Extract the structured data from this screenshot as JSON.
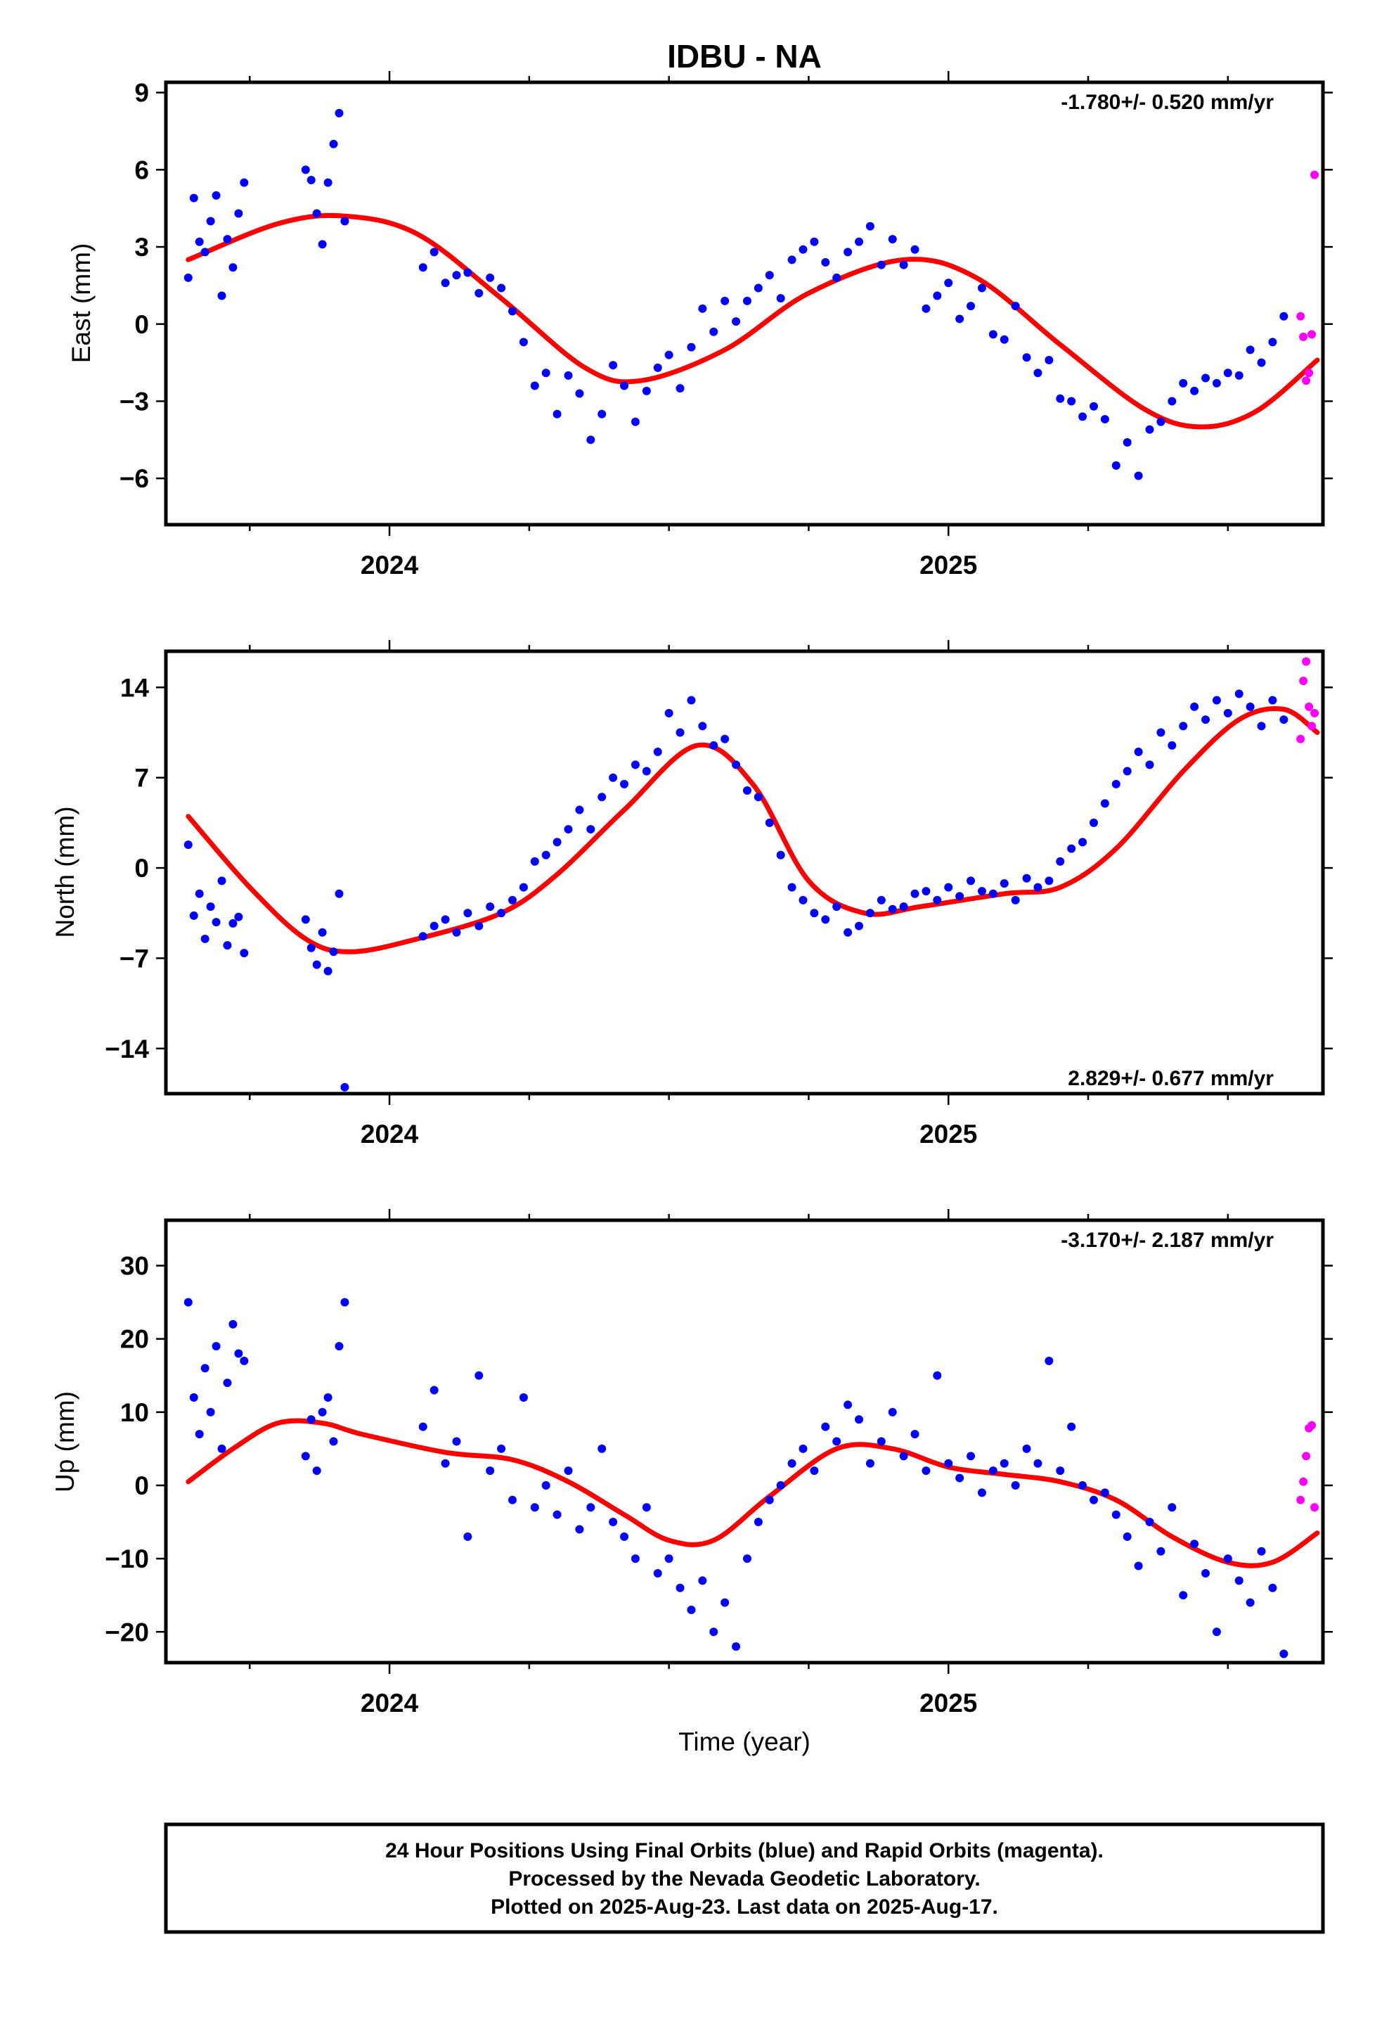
{
  "title": "IDBU - NA",
  "x_axis_title": "Time (year)",
  "footer": {
    "line1": "24 Hour Positions Using Final Orbits (blue) and Rapid Orbits (magenta).",
    "line2": "Processed by the Nevada Geodetic Laboratory.",
    "line3": "Plotted on 2025-Aug-23. Last data on 2025-Aug-17."
  },
  "colors": {
    "final_orbits": "#0000ff",
    "rapid_orbits": "#ff00ff",
    "model_fit": "#ff0000",
    "frame": "#000000"
  },
  "chart_data": [
    {
      "type": "scatter",
      "component": "east",
      "ylabel": "East (mm)",
      "rate_text": "-1.780+/- 0.520 mm/yr",
      "xlim": [
        2023.6,
        2025.67
      ],
      "ylim": [
        -7.8,
        9.4
      ],
      "yticks": [
        -6,
        -3,
        0,
        3,
        6,
        9
      ],
      "ytick_labels": [
        "−6",
        "−3",
        "0",
        "3",
        "6",
        "9"
      ],
      "xticks": [
        2024,
        2025
      ],
      "xtick_labels": [
        "2024",
        "2025"
      ],
      "x_minor_ticks": [
        2023.75,
        2024.25,
        2024.5,
        2024.75,
        2025.25,
        2025.5
      ],
      "fit": {
        "x": [
          2023.64,
          2023.8,
          2023.92,
          2024.05,
          2024.2,
          2024.35,
          2024.45,
          2024.6,
          2024.75,
          2024.92,
          2025.05,
          2025.2,
          2025.35,
          2025.45,
          2025.55,
          2025.66
        ],
        "y": [
          2.5,
          3.9,
          4.2,
          3.5,
          1.0,
          -1.7,
          -2.2,
          -1.0,
          1.2,
          2.5,
          1.8,
          -0.8,
          -3.3,
          -4.0,
          -3.4,
          -1.4
        ]
      },
      "series": [
        {
          "name": "Final Orbits",
          "color": "#0000ff",
          "x": [
            2023.64,
            2023.65,
            2023.66,
            2023.67,
            2023.68,
            2023.69,
            2023.7,
            2023.71,
            2023.72,
            2023.73,
            2023.74,
            2023.85,
            2023.86,
            2023.87,
            2023.88,
            2023.89,
            2023.9,
            2023.91,
            2023.92,
            2024.06,
            2024.08,
            2024.1,
            2024.12,
            2024.14,
            2024.16,
            2024.18,
            2024.2,
            2024.22,
            2024.24,
            2024.26,
            2024.28,
            2024.3,
            2024.32,
            2024.34,
            2024.36,
            2024.38,
            2024.4,
            2024.42,
            2024.44,
            2024.46,
            2024.48,
            2024.5,
            2024.52,
            2024.54,
            2024.56,
            2024.58,
            2024.6,
            2024.62,
            2024.64,
            2024.66,
            2024.68,
            2024.7,
            2024.72,
            2024.74,
            2024.76,
            2024.78,
            2024.8,
            2024.82,
            2024.84,
            2024.86,
            2024.88,
            2024.9,
            2024.92,
            2024.94,
            2024.96,
            2024.98,
            2025.0,
            2025.02,
            2025.04,
            2025.06,
            2025.08,
            2025.1,
            2025.12,
            2025.14,
            2025.16,
            2025.18,
            2025.2,
            2025.22,
            2025.24,
            2025.26,
            2025.28,
            2025.3,
            2025.32,
            2025.34,
            2025.36,
            2025.38,
            2025.4,
            2025.42,
            2025.44,
            2025.46,
            2025.48,
            2025.5,
            2025.52,
            2025.54,
            2025.56,
            2025.58,
            2025.6
          ],
          "y": [
            1.8,
            4.9,
            3.2,
            2.8,
            4.0,
            5.0,
            1.1,
            3.3,
            2.2,
            4.3,
            5.5,
            6.0,
            5.6,
            4.3,
            3.1,
            5.5,
            7.0,
            8.2,
            4.0,
            2.2,
            2.8,
            1.6,
            1.9,
            2.0,
            1.2,
            1.8,
            1.4,
            0.5,
            -0.7,
            -2.4,
            -1.9,
            -3.5,
            -2.0,
            -2.7,
            -4.5,
            -3.5,
            -1.6,
            -2.4,
            -3.8,
            -2.6,
            -1.7,
            -1.2,
            -2.5,
            -0.9,
            0.6,
            -0.3,
            0.9,
            0.1,
            0.9,
            1.4,
            1.9,
            1.0,
            2.5,
            2.9,
            3.2,
            2.4,
            1.8,
            2.8,
            3.2,
            3.8,
            2.3,
            3.3,
            2.3,
            2.9,
            0.6,
            1.1,
            1.6,
            0.2,
            0.7,
            1.4,
            -0.4,
            -0.6,
            0.7,
            -1.3,
            -1.9,
            -1.4,
            -2.9,
            -3.0,
            -3.6,
            -3.2,
            -3.7,
            -5.5,
            -4.6,
            -5.9,
            -4.1,
            -3.8,
            -3.0,
            -2.3,
            -2.6,
            -2.1,
            -2.3,
            -1.9,
            -2.0,
            -1.0,
            -1.5,
            -0.7,
            0.3
          ]
        },
        {
          "name": "Rapid Orbits",
          "color": "#ff00ff",
          "x": [
            2025.63,
            2025.635,
            2025.64,
            2025.645,
            2025.65,
            2025.655
          ],
          "y": [
            0.3,
            -0.5,
            -2.2,
            -1.9,
            -0.4,
            5.8
          ]
        }
      ]
    },
    {
      "type": "scatter",
      "component": "north",
      "ylabel": "North (mm)",
      "rate_text": "2.829+/- 0.677 mm/yr",
      "xlim": [
        2023.6,
        2025.67
      ],
      "ylim": [
        -17.5,
        16.8
      ],
      "yticks": [
        -14,
        -7,
        0,
        7,
        14
      ],
      "ytick_labels": [
        "−14",
        "−7",
        "0",
        "7",
        "14"
      ],
      "xticks": [
        2024,
        2025
      ],
      "xtick_labels": [
        "2024",
        "2025"
      ],
      "x_minor_ticks": [
        2023.75,
        2024.25,
        2024.5,
        2024.75,
        2025.25,
        2025.5
      ],
      "fit": {
        "x": [
          2023.64,
          2023.75,
          2023.85,
          2023.93,
          2024.05,
          2024.2,
          2024.3,
          2024.42,
          2024.55,
          2024.65,
          2024.75,
          2024.85,
          2024.95,
          2025.1,
          2025.2,
          2025.3,
          2025.42,
          2025.52,
          2025.6,
          2025.66
        ],
        "y": [
          4.0,
          -1.5,
          -5.5,
          -6.5,
          -5.5,
          -3.5,
          -0.5,
          4.5,
          9.5,
          6.5,
          -1.0,
          -3.5,
          -3.0,
          -2.0,
          -1.5,
          1.5,
          7.5,
          11.5,
          12.3,
          10.5
        ]
      },
      "series": [
        {
          "name": "Final Orbits",
          "color": "#0000ff",
          "x": [
            2023.64,
            2023.65,
            2023.66,
            2023.67,
            2023.68,
            2023.69,
            2023.7,
            2023.71,
            2023.72,
            2023.73,
            2023.74,
            2023.85,
            2023.86,
            2023.87,
            2023.88,
            2023.89,
            2023.9,
            2023.91,
            2023.92,
            2024.06,
            2024.08,
            2024.1,
            2024.12,
            2024.14,
            2024.16,
            2024.18,
            2024.2,
            2024.22,
            2024.24,
            2024.26,
            2024.28,
            2024.3,
            2024.32,
            2024.34,
            2024.36,
            2024.38,
            2024.4,
            2024.42,
            2024.44,
            2024.46,
            2024.48,
            2024.5,
            2024.52,
            2024.54,
            2024.56,
            2024.58,
            2024.6,
            2024.62,
            2024.64,
            2024.66,
            2024.68,
            2024.7,
            2024.72,
            2024.74,
            2024.76,
            2024.78,
            2024.8,
            2024.82,
            2024.84,
            2024.86,
            2024.88,
            2024.9,
            2024.92,
            2024.94,
            2024.96,
            2024.98,
            2025.0,
            2025.02,
            2025.04,
            2025.06,
            2025.08,
            2025.1,
            2025.12,
            2025.14,
            2025.16,
            2025.18,
            2025.2,
            2025.22,
            2025.24,
            2025.26,
            2025.28,
            2025.3,
            2025.32,
            2025.34,
            2025.36,
            2025.38,
            2025.4,
            2025.42,
            2025.44,
            2025.46,
            2025.48,
            2025.5,
            2025.52,
            2025.54,
            2025.56,
            2025.58,
            2025.6
          ],
          "y": [
            1.8,
            -3.7,
            -2.0,
            -5.5,
            -3.0,
            -4.2,
            -1.0,
            -6.0,
            -4.3,
            -3.8,
            -6.6,
            -4.0,
            -6.2,
            -7.5,
            -5.0,
            -8.0,
            -6.5,
            -2.0,
            -17.0,
            -5.3,
            -4.5,
            -4.0,
            -5.0,
            -3.5,
            -4.5,
            -3.0,
            -3.5,
            -2.5,
            -1.5,
            0.5,
            1.0,
            2.0,
            3.0,
            4.5,
            3.0,
            5.5,
            7.0,
            6.5,
            8.0,
            7.5,
            9.0,
            12.0,
            10.5,
            13.0,
            11.0,
            9.5,
            10.0,
            8.0,
            6.0,
            5.5,
            3.5,
            1.0,
            -1.5,
            -2.5,
            -3.5,
            -4.0,
            -3.0,
            -5.0,
            -4.5,
            -3.5,
            -2.5,
            -3.2,
            -3.0,
            -2.0,
            -1.8,
            -2.5,
            -1.5,
            -2.2,
            -1.0,
            -1.8,
            -2.0,
            -1.2,
            -2.5,
            -0.8,
            -1.5,
            -1.0,
            0.5,
            1.5,
            2.0,
            3.5,
            5.0,
            6.5,
            7.5,
            9.0,
            8.0,
            10.5,
            9.5,
            11.0,
            12.5,
            11.5,
            13.0,
            12.0,
            13.5,
            12.5,
            11.0,
            13.0,
            11.5
          ]
        },
        {
          "name": "Rapid Orbits",
          "color": "#ff00ff",
          "x": [
            2025.63,
            2025.635,
            2025.64,
            2025.645,
            2025.65,
            2025.655
          ],
          "y": [
            10.0,
            14.5,
            16.0,
            12.5,
            11.0,
            12.0
          ]
        }
      ]
    },
    {
      "type": "scatter",
      "component": "up",
      "ylabel": "Up (mm)",
      "rate_text": "-3.170+/- 2.187 mm/yr",
      "xlim": [
        2023.6,
        2025.67
      ],
      "ylim": [
        -24.2,
        36.2
      ],
      "yticks": [
        -20,
        -10,
        0,
        10,
        20,
        30
      ],
      "ytick_labels": [
        "−20",
        "−10",
        "0",
        "10",
        "20",
        "30"
      ],
      "xticks": [
        2024,
        2025
      ],
      "xtick_labels": [
        "2024",
        "2025"
      ],
      "x_minor_ticks": [
        2023.75,
        2024.25,
        2024.5,
        2024.75,
        2025.25,
        2025.5
      ],
      "fit": {
        "x": [
          2023.64,
          2023.72,
          2023.8,
          2023.88,
          2023.95,
          2024.1,
          2024.22,
          2024.32,
          2024.42,
          2024.5,
          2024.58,
          2024.68,
          2024.8,
          2024.9,
          2025.0,
          2025.1,
          2025.2,
          2025.3,
          2025.4,
          2025.5,
          2025.58,
          2025.66
        ],
        "y": [
          0.5,
          5.0,
          8.5,
          8.5,
          7.0,
          4.5,
          3.5,
          0.5,
          -4.0,
          -7.5,
          -7.5,
          -1.5,
          5.0,
          5.0,
          2.5,
          1.5,
          0.5,
          -2.0,
          -7.0,
          -10.5,
          -10.5,
          -6.5
        ]
      },
      "series": [
        {
          "name": "Final Orbits",
          "color": "#0000ff",
          "x": [
            2023.64,
            2023.65,
            2023.66,
            2023.67,
            2023.68,
            2023.69,
            2023.7,
            2023.71,
            2023.72,
            2023.73,
            2023.74,
            2023.85,
            2023.86,
            2023.87,
            2023.88,
            2023.89,
            2023.9,
            2023.91,
            2023.92,
            2024.06,
            2024.08,
            2024.1,
            2024.12,
            2024.14,
            2024.16,
            2024.18,
            2024.2,
            2024.22,
            2024.24,
            2024.26,
            2024.28,
            2024.3,
            2024.32,
            2024.34,
            2024.36,
            2024.38,
            2024.4,
            2024.42,
            2024.44,
            2024.46,
            2024.48,
            2024.5,
            2024.52,
            2024.54,
            2024.56,
            2024.58,
            2024.6,
            2024.62,
            2024.64,
            2024.66,
            2024.68,
            2024.7,
            2024.72,
            2024.74,
            2024.76,
            2024.78,
            2024.8,
            2024.82,
            2024.84,
            2024.86,
            2024.88,
            2024.9,
            2024.92,
            2024.94,
            2024.96,
            2024.98,
            2025.0,
            2025.02,
            2025.04,
            2025.06,
            2025.08,
            2025.1,
            2025.12,
            2025.14,
            2025.16,
            2025.18,
            2025.2,
            2025.22,
            2025.24,
            2025.26,
            2025.28,
            2025.3,
            2025.32,
            2025.34,
            2025.36,
            2025.38,
            2025.4,
            2025.42,
            2025.44,
            2025.46,
            2025.48,
            2025.5,
            2025.52,
            2025.54,
            2025.56,
            2025.58,
            2025.6
          ],
          "y": [
            25.0,
            12.0,
            7.0,
            16.0,
            10.0,
            19.0,
            5.0,
            14.0,
            22.0,
            18.0,
            17.0,
            4.0,
            9.0,
            2.0,
            10.0,
            12.0,
            6.0,
            19.0,
            25.0,
            8.0,
            13.0,
            3.0,
            6.0,
            -7.0,
            15.0,
            2.0,
            5.0,
            -2.0,
            12.0,
            -3.0,
            0.0,
            -4.0,
            2.0,
            -6.0,
            -3.0,
            5.0,
            -5.0,
            -7.0,
            -10.0,
            -3.0,
            -12.0,
            -10.0,
            -14.0,
            -17.0,
            -13.0,
            -20.0,
            -16.0,
            -22.0,
            -10.0,
            -5.0,
            -2.0,
            0.0,
            3.0,
            5.0,
            2.0,
            8.0,
            6.0,
            11.0,
            9.0,
            3.0,
            6.0,
            10.0,
            4.0,
            7.0,
            2.0,
            15.0,
            3.0,
            1.0,
            4.0,
            -1.0,
            2.0,
            3.0,
            0.0,
            5.0,
            3.0,
            17.0,
            2.0,
            8.0,
            0.0,
            -2.0,
            -1.0,
            -4.0,
            -7.0,
            -11.0,
            -5.0,
            -9.0,
            -3.0,
            -15.0,
            -8.0,
            -12.0,
            -20.0,
            -10.0,
            -13.0,
            -16.0,
            -9.0,
            -14.0,
            -23.0
          ]
        },
        {
          "name": "Rapid Orbits",
          "color": "#ff00ff",
          "x": [
            2025.63,
            2025.635,
            2025.64,
            2025.645,
            2025.65,
            2025.655
          ],
          "y": [
            -2.0,
            0.5,
            4.0,
            7.8,
            8.2,
            -3.0
          ]
        }
      ]
    }
  ]
}
